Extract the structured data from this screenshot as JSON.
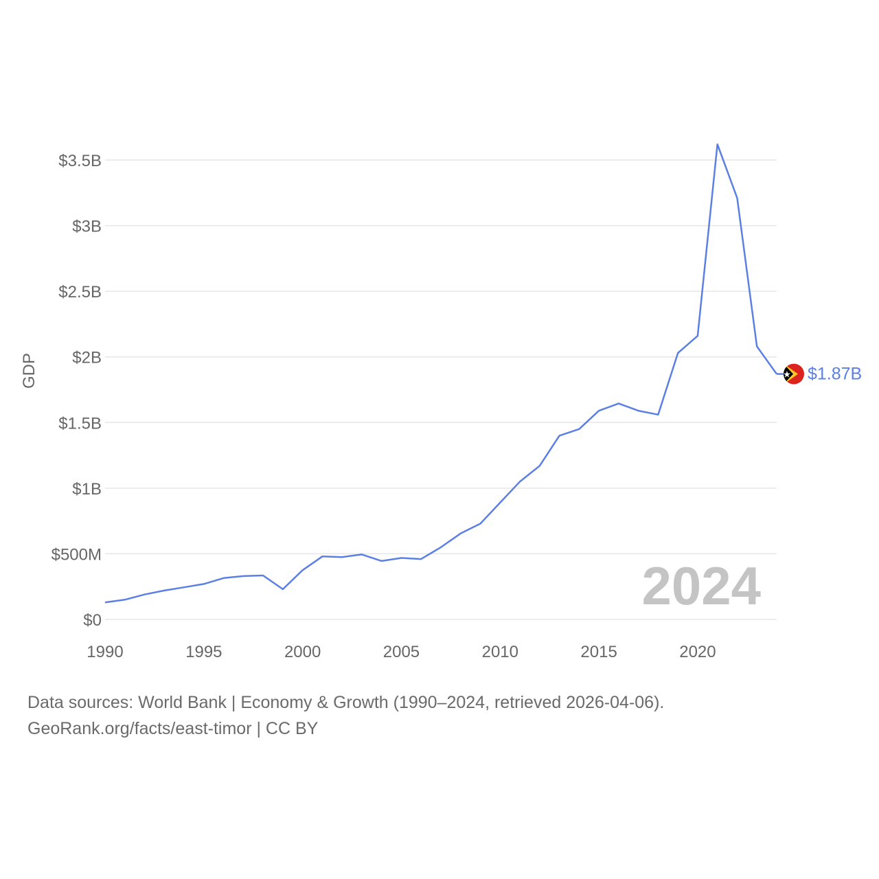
{
  "colors": {
    "line": "#5b7fe3",
    "grid": "#e6e6e6",
    "tick_text": "#666666",
    "year_stamp": "#c4c4c4",
    "flag_red": "#dc241f",
    "flag_yellow": "#ffc726",
    "flag_black": "#000000"
  },
  "chart_data": {
    "type": "line",
    "title": "",
    "xlabel": "",
    "ylabel": "GDP",
    "xlim": [
      1990,
      2024
    ],
    "ylim": [
      0,
      3500000000
    ],
    "grid": true,
    "year_stamp": "2024",
    "x_ticks": [
      1990,
      1995,
      2000,
      2005,
      2010,
      2015,
      2020
    ],
    "x_tick_labels": [
      "1990",
      "1995",
      "2000",
      "2005",
      "2010",
      "2015",
      "2020"
    ],
    "y_ticks": [
      0,
      500000000,
      1000000000,
      1500000000,
      2000000000,
      2500000000,
      3000000000,
      3500000000
    ],
    "y_tick_labels": [
      "$0",
      "$500M",
      "$1B",
      "$1.5B",
      "$2B",
      "$2.5B",
      "$3B",
      "$3.5B"
    ],
    "series": [
      {
        "name": "Timor-Leste",
        "end_label": "$1.87B",
        "flag_icon": "timor-leste-flag-icon",
        "x": [
          1990,
          1991,
          1992,
          1993,
          1994,
          1995,
          1996,
          1997,
          1998,
          1999,
          2000,
          2001,
          2002,
          2003,
          2004,
          2005,
          2006,
          2007,
          2008,
          2009,
          2010,
          2011,
          2012,
          2013,
          2014,
          2015,
          2016,
          2017,
          2018,
          2019,
          2020,
          2021,
          2022,
          2023,
          2024
        ],
        "values": [
          130000000,
          150000000,
          190000000,
          220000000,
          245000000,
          270000000,
          315000000,
          330000000,
          335000000,
          230000000,
          375000000,
          480000000,
          475000000,
          495000000,
          445000000,
          468000000,
          460000000,
          550000000,
          655000000,
          730000000,
          890000000,
          1050000000,
          1170000000,
          1400000000,
          1450000000,
          1590000000,
          1645000000,
          1590000000,
          1560000000,
          2030000000,
          2160000000,
          3620000000,
          3210000000,
          2080000000,
          1870000000
        ]
      }
    ]
  },
  "footer": {
    "line1": "Data sources: World Bank | Economy & Growth (1990–2024, retrieved 2026-04-06).",
    "line2": "GeoRank.org/facts/east-timor | CC BY"
  }
}
